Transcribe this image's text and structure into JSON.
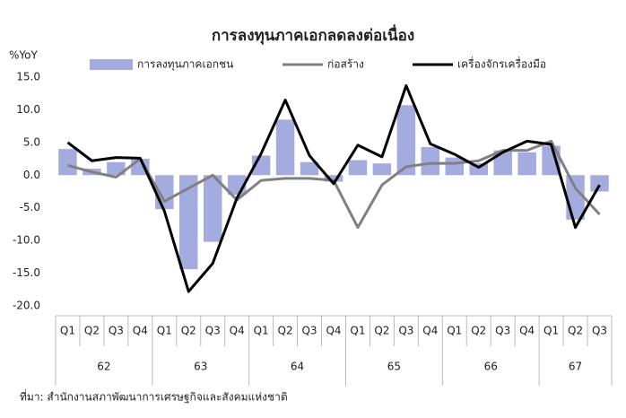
{
  "chart_data": {
    "type": "bar-line",
    "title": "การลงทุนภาคเอกลดลงต่อเนื่อง",
    "y_label": "%YoY",
    "source": "ที่มา: สำนักงานสภาพัฒนาการเศรษฐกิจและสังคมแห่งชาติ",
    "categories": [
      "Q1",
      "Q2",
      "Q3",
      "Q4",
      "Q1",
      "Q2",
      "Q3",
      "Q4",
      "Q1",
      "Q2",
      "Q3",
      "Q4",
      "Q1",
      "Q2",
      "Q3",
      "Q4",
      "Q1",
      "Q2",
      "Q3",
      "Q4",
      "Q1",
      "Q2",
      "Q3"
    ],
    "groups": [
      "62",
      "63",
      "64",
      "65",
      "66",
      "67"
    ],
    "series": [
      {
        "name": "การลงทุนภาคเอกชน",
        "kind": "bar",
        "color": "#a4acdf",
        "values": [
          4.0,
          1.0,
          2.0,
          2.5,
          -5.2,
          -14.4,
          -10.2,
          -3.0,
          3.0,
          8.5,
          2.0,
          -1.0,
          2.3,
          1.8,
          10.7,
          4.3,
          2.7,
          1.8,
          3.8,
          3.5,
          4.5,
          -6.8,
          -2.5
        ]
      },
      {
        "name": "ก่อสร้าง",
        "kind": "line",
        "color": "#808080",
        "values": [
          1.5,
          0.5,
          -0.3,
          2.5,
          -4.0,
          -2.0,
          0.0,
          -3.8,
          -0.8,
          -0.5,
          -0.5,
          -0.8,
          -8.0,
          -1.5,
          1.3,
          1.8,
          1.8,
          2.2,
          3.8,
          3.8,
          5.2,
          -2.0,
          -6.0
        ]
      },
      {
        "name": "เครื่องจักรเครื่องมือ",
        "kind": "line",
        "color": "#000000",
        "values": [
          5.0,
          2.2,
          2.7,
          2.6,
          -5.5,
          -17.8,
          -13.5,
          -3.5,
          3.3,
          11.5,
          3.0,
          -1.3,
          4.6,
          2.8,
          13.7,
          4.8,
          3.2,
          1.2,
          3.5,
          5.2,
          4.7,
          -8.0,
          -1.5
        ]
      }
    ],
    "ylim": [
      -20,
      15
    ],
    "yticks": [
      {
        "value": -20,
        "label": "-20.0"
      },
      {
        "value": -15,
        "label": "-15.0"
      },
      {
        "value": -10,
        "label": "-10.0"
      },
      {
        "value": -5,
        "label": "-5.0"
      },
      {
        "value": 0,
        "label": "0.0"
      },
      {
        "value": 5,
        "label": "5.0"
      },
      {
        "value": 10,
        "label": "10.0"
      },
      {
        "value": 15,
        "label": "15.0"
      }
    ],
    "grid": false
  }
}
